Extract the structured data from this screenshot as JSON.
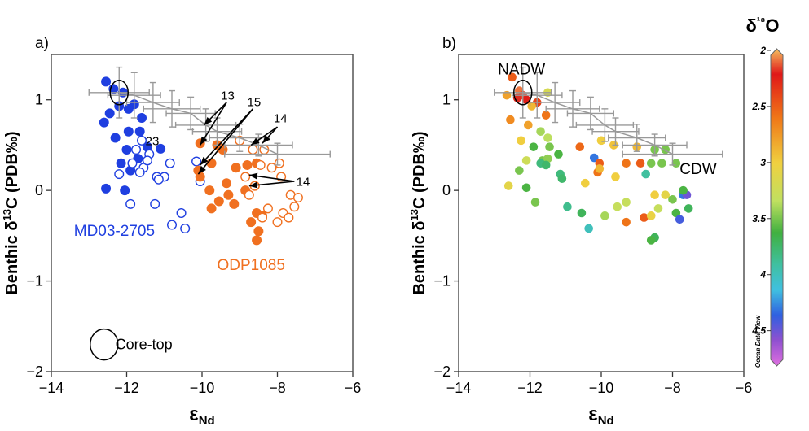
{
  "figure": {
    "colorbar_title": "δ¹⁸O",
    "colorbar_ticks": [
      "2",
      "2.5",
      "3",
      "3.5",
      "4",
      "4.5"
    ],
    "colorbar_credit": "Ocean Data View"
  },
  "chart_data": [
    {
      "type": "scatter",
      "panel_label": "a)",
      "xlabel": "εNd",
      "ylabel": "Benthic δ13C (PDB‰)",
      "xlim": [
        -14,
        -6
      ],
      "ylim": [
        -2,
        1.5
      ],
      "xticks": [
        -14,
        -12,
        -10,
        -8,
        -6
      ],
      "yticks": [
        -2,
        -1,
        0,
        1
      ],
      "grid": false,
      "series": [
        {
          "name": "MD03-2705",
          "color": "#1f3fe0",
          "marker": "filled",
          "x": [
            -12.55,
            -12.35,
            -12.1,
            -11.8,
            -12.2,
            -11.95,
            -11.6,
            -12.6,
            -12.45,
            -11.95,
            -11.65,
            -12.3,
            -11.45,
            -12.0,
            -12.15,
            -11.7,
            -11.9,
            -11.1,
            -12.55,
            -12.05
          ],
          "y": [
            1.2,
            1.12,
            1.08,
            0.95,
            0.93,
            0.9,
            0.8,
            0.75,
            0.85,
            0.65,
            0.65,
            0.58,
            0.48,
            0.45,
            0.3,
            0.35,
            0.22,
            0.46,
            0.02,
            0.0
          ]
        },
        {
          "name": "MD03-2705",
          "color": "#1f3fe0",
          "marker": "open",
          "x": [
            -11.6,
            -11.4,
            -11.75,
            -11.85,
            -11.55,
            -11.65,
            -11.45,
            -10.85,
            -11.0,
            -12.2,
            -11.2,
            -11.15,
            -11.9,
            -11.25,
            -10.55,
            -10.8,
            -10.45,
            -10.15,
            -10.05
          ],
          "y": [
            0.55,
            0.4,
            0.45,
            0.3,
            0.25,
            0.2,
            0.33,
            0.3,
            0.15,
            0.18,
            0.15,
            0.12,
            -0.15,
            -0.15,
            -0.25,
            -0.38,
            -0.42,
            0.32,
            0.1
          ]
        },
        {
          "name": "ODP1085",
          "color": "#f07020",
          "marker": "filled",
          "x": [
            -10.05,
            -9.6,
            -10.1,
            -9.75,
            -10.05,
            -9.8,
            -9.35,
            -9.1,
            -8.8,
            -8.85,
            -8.55,
            -9.3,
            -9.55,
            -9.15,
            -9.75,
            -8.55,
            -8.4,
            -8.7,
            -8.5,
            -8.55,
            -9.45,
            -8.6
          ],
          "y": [
            0.52,
            0.5,
            0.22,
            0.3,
            0.15,
            0.0,
            0.08,
            0.25,
            0.28,
            0.0,
            0.3,
            -0.05,
            -0.12,
            -0.15,
            -0.2,
            -0.25,
            -0.28,
            -0.35,
            -0.45,
            -0.55,
            0.45,
            0.05
          ]
        },
        {
          "name": "ODP1085",
          "color": "#f07020",
          "marker": "open",
          "x": [
            -8.65,
            -8.35,
            -7.95,
            -8.85,
            -8.6,
            -8.45,
            -8.15,
            -7.9,
            -7.65,
            -7.45,
            -7.55,
            -8.25,
            -7.85,
            -7.7,
            -8.0,
            -8.75,
            -8.4,
            -9.0
          ],
          "y": [
            0.45,
            0.45,
            0.3,
            0.15,
            0.05,
            0.28,
            0.25,
            0.15,
            -0.05,
            -0.08,
            -0.18,
            -0.2,
            -0.25,
            -0.3,
            -0.35,
            -0.05,
            -0.3,
            0.55
          ]
        }
      ],
      "error_points": [
        {
          "x": -12.2,
          "y": 1.08,
          "xerr": 0.8,
          "yerr": 0.28
        },
        {
          "x": -11.8,
          "y": 1.05,
          "xerr": 0.7,
          "yerr": 0.25
        },
        {
          "x": -11.3,
          "y": 0.97,
          "xerr": 0.7,
          "yerr": 0.22
        },
        {
          "x": -10.8,
          "y": 0.9,
          "xerr": 0.75,
          "yerr": 0.2
        },
        {
          "x": -10.3,
          "y": 0.85,
          "xerr": 0.65,
          "yerr": 0.18
        },
        {
          "x": -9.9,
          "y": 0.72,
          "xerr": 0.8,
          "yerr": 0.18
        },
        {
          "x": -9.6,
          "y": 0.65,
          "xerr": 0.65,
          "yerr": 0.15
        },
        {
          "x": -9.0,
          "y": 0.58,
          "xerr": 0.8,
          "yerr": 0.15
        },
        {
          "x": -8.5,
          "y": 0.5,
          "xerr": 0.9,
          "yerr": 0.12
        },
        {
          "x": -8.0,
          "y": 0.4,
          "xerr": 1.4,
          "yerr": 0.12
        }
      ],
      "annotations": [
        {
          "text": "13",
          "x": -9.5,
          "y": 1.0
        },
        {
          "text": "15",
          "x": -8.8,
          "y": 0.93
        },
        {
          "text": "14",
          "x": -8.1,
          "y": 0.75
        },
        {
          "text": "14",
          "x": -7.5,
          "y": 0.05
        },
        {
          "text": "23",
          "x": -11.5,
          "y": 0.5
        }
      ],
      "series_labels": [
        {
          "text": "MD03-2705",
          "x": -13.4,
          "y": -0.5
        },
        {
          "text": "ODP1085",
          "x": -9.6,
          "y": -0.88
        }
      ],
      "legend_label": "Core-top"
    },
    {
      "type": "scatter",
      "panel_label": "b)",
      "xlabel": "εNd",
      "ylabel": "Benthic δ13C (PDB‰)",
      "xlim": [
        -14,
        -6
      ],
      "ylim": [
        -2,
        1.5
      ],
      "xticks": [
        -14,
        -12,
        -10,
        -8,
        -6
      ],
      "yticks": [
        -2,
        -1,
        0,
        1
      ],
      "grid": false,
      "colorbar": {
        "variable": "δ18O",
        "range": [
          2,
          4.8
        ]
      },
      "labels": [
        {
          "text": "NADW",
          "x": -12.9,
          "y": 1.28
        },
        {
          "text": "CDW",
          "x": -7.8,
          "y": 0.18
        }
      ],
      "points": [
        {
          "x": -12.5,
          "y": 1.25,
          "c": 2.5
        },
        {
          "x": -12.3,
          "y": 1.1,
          "c": 2.1
        },
        {
          "x": -12.2,
          "y": 1.05,
          "c": 2.15
        },
        {
          "x": -12.35,
          "y": 1.02,
          "c": 2.2
        },
        {
          "x": -12.1,
          "y": 1.0,
          "c": 2.25
        },
        {
          "x": -11.8,
          "y": 0.97,
          "c": 2.4
        },
        {
          "x": -12.65,
          "y": 1.05,
          "c": 2.8
        },
        {
          "x": -11.95,
          "y": 0.93,
          "c": 2.9
        },
        {
          "x": -11.5,
          "y": 1.08,
          "c": 3.2
        },
        {
          "x": -12.55,
          "y": 0.78,
          "c": 2.7
        },
        {
          "x": -11.55,
          "y": 0.83,
          "c": 2.6
        },
        {
          "x": -12.05,
          "y": 0.72,
          "c": 2.8
        },
        {
          "x": -11.7,
          "y": 0.65,
          "c": 3.4
        },
        {
          "x": -11.5,
          "y": 0.58,
          "c": 3.35
        },
        {
          "x": -12.25,
          "y": 0.55,
          "c": 3.0
        },
        {
          "x": -11.9,
          "y": 0.48,
          "c": 3.6
        },
        {
          "x": -11.45,
          "y": 0.48,
          "c": 3.5
        },
        {
          "x": -10.6,
          "y": 0.48,
          "c": 2.55
        },
        {
          "x": -10.0,
          "y": 0.55,
          "c": 3.0
        },
        {
          "x": -9.65,
          "y": 0.5,
          "c": 2.95
        },
        {
          "x": -9.0,
          "y": 0.48,
          "c": 2.9
        },
        {
          "x": -8.5,
          "y": 0.45,
          "c": 3.5
        },
        {
          "x": -8.2,
          "y": 0.45,
          "c": 3.5
        },
        {
          "x": -11.2,
          "y": 0.4,
          "c": 3.6
        },
        {
          "x": -10.2,
          "y": 0.36,
          "c": 4.3
        },
        {
          "x": -10.05,
          "y": 0.3,
          "c": 2.5
        },
        {
          "x": -9.3,
          "y": 0.3,
          "c": 2.6
        },
        {
          "x": -8.9,
          "y": 0.3,
          "c": 2.5
        },
        {
          "x": -8.6,
          "y": 0.3,
          "c": 3.5
        },
        {
          "x": -8.3,
          "y": 0.3,
          "c": 3.5
        },
        {
          "x": -11.65,
          "y": 0.33,
          "c": 3.5
        },
        {
          "x": -11.5,
          "y": 0.35,
          "c": 3.45
        },
        {
          "x": -11.7,
          "y": 0.3,
          "c": 3.8
        },
        {
          "x": -11.55,
          "y": 0.28,
          "c": 3.75
        },
        {
          "x": -12.1,
          "y": 0.33,
          "c": 3.25
        },
        {
          "x": -12.3,
          "y": 0.22,
          "c": 3.5
        },
        {
          "x": -10.1,
          "y": 0.2,
          "c": 2.6
        },
        {
          "x": -10.05,
          "y": 0.24,
          "c": 2.9
        },
        {
          "x": -11.15,
          "y": 0.18,
          "c": 3.8
        },
        {
          "x": -11.1,
          "y": 0.13,
          "c": 3.75
        },
        {
          "x": -10.45,
          "y": 0.08,
          "c": 3.0
        },
        {
          "x": -9.6,
          "y": 0.15,
          "c": 3.0
        },
        {
          "x": -8.75,
          "y": 0.18,
          "c": 3.9
        },
        {
          "x": -12.6,
          "y": 0.05,
          "c": 3.1
        },
        {
          "x": -12.1,
          "y": 0.03,
          "c": 3.6
        },
        {
          "x": -11.85,
          "y": -0.13,
          "c": 3.5
        },
        {
          "x": -10.95,
          "y": -0.18,
          "c": 3.85
        },
        {
          "x": -10.55,
          "y": -0.25,
          "c": 3.7
        },
        {
          "x": -10.35,
          "y": -0.42,
          "c": 4.0
        },
        {
          "x": -9.9,
          "y": -0.28,
          "c": 3.4
        },
        {
          "x": -9.55,
          "y": -0.18,
          "c": 3.3
        },
        {
          "x": -9.3,
          "y": -0.13,
          "c": 3.3
        },
        {
          "x": -9.3,
          "y": -0.35,
          "c": 2.6
        },
        {
          "x": -8.8,
          "y": -0.3,
          "c": 2.5
        },
        {
          "x": -8.6,
          "y": -0.28,
          "c": 3.05
        },
        {
          "x": -8.5,
          "y": -0.05,
          "c": 3.0
        },
        {
          "x": -8.2,
          "y": -0.05,
          "c": 3.1
        },
        {
          "x": -8.4,
          "y": -0.2,
          "c": 3.3
        },
        {
          "x": -8.0,
          "y": -0.1,
          "c": 3.5
        },
        {
          "x": -7.9,
          "y": -0.25,
          "c": 3.6
        },
        {
          "x": -7.7,
          "y": -0.05,
          "c": 4.3
        },
        {
          "x": -7.6,
          "y": -0.05,
          "c": 4.5
        },
        {
          "x": -7.55,
          "y": -0.2,
          "c": 3.7
        },
        {
          "x": -7.8,
          "y": -0.32,
          "c": 4.4
        },
        {
          "x": -8.5,
          "y": -0.52,
          "c": 3.7
        },
        {
          "x": -8.6,
          "y": -0.55,
          "c": 3.6
        },
        {
          "x": -7.9,
          "y": 0.3,
          "c": 3.5
        },
        {
          "x": -7.7,
          "y": 0.0,
          "c": 3.6
        }
      ],
      "error_points": [
        {
          "x": -12.2,
          "y": 1.08,
          "xerr": 0.8,
          "yerr": 0.28
        },
        {
          "x": -11.8,
          "y": 1.05,
          "xerr": 0.7,
          "yerr": 0.25
        },
        {
          "x": -11.3,
          "y": 0.97,
          "xerr": 0.7,
          "yerr": 0.22
        },
        {
          "x": -10.8,
          "y": 0.9,
          "xerr": 0.75,
          "yerr": 0.2
        },
        {
          "x": -10.3,
          "y": 0.85,
          "xerr": 0.65,
          "yerr": 0.18
        },
        {
          "x": -9.9,
          "y": 0.72,
          "xerr": 0.8,
          "yerr": 0.18
        },
        {
          "x": -9.6,
          "y": 0.65,
          "xerr": 0.65,
          "yerr": 0.15
        },
        {
          "x": -9.0,
          "y": 0.58,
          "xerr": 0.8,
          "yerr": 0.15
        },
        {
          "x": -8.5,
          "y": 0.5,
          "xerr": 0.9,
          "yerr": 0.12
        },
        {
          "x": -8.0,
          "y": 0.4,
          "xerr": 1.4,
          "yerr": 0.12
        }
      ]
    }
  ]
}
